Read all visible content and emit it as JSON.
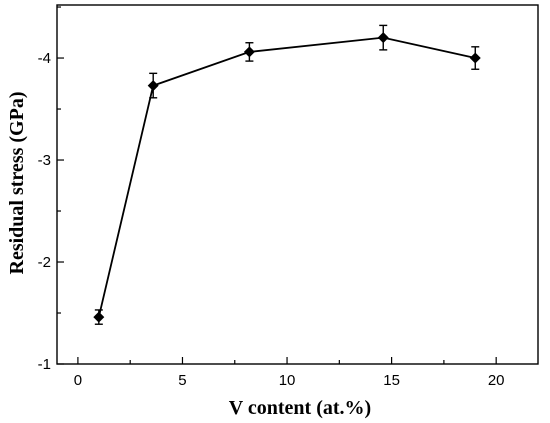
{
  "chart_data": {
    "type": "line",
    "title": "",
    "xlabel": "V content (at.%)",
    "ylabel": "Residual stress (GPa)",
    "xlim": [
      -1,
      22
    ],
    "ylim": [
      -1,
      -4.52
    ],
    "y_axis_inverted": true,
    "xticks": [
      0,
      5,
      10,
      15,
      20
    ],
    "xtick_labels": [
      "0",
      "5",
      "10",
      "15",
      "20"
    ],
    "yticks": [
      -1,
      -2,
      -3,
      -4
    ],
    "ytick_labels": [
      "-1",
      "-2",
      "-3",
      "-4"
    ],
    "grid": false,
    "legend": "none",
    "series": [
      {
        "x": [
          1.0,
          3.6,
          8.2,
          14.6,
          19.0
        ],
        "y": [
          -1.46,
          -3.73,
          -4.06,
          -4.2,
          -4.0
        ],
        "error": [
          0.07,
          0.12,
          0.09,
          0.12,
          0.11
        ],
        "marker": "diamond",
        "color": "#000000"
      }
    ]
  }
}
